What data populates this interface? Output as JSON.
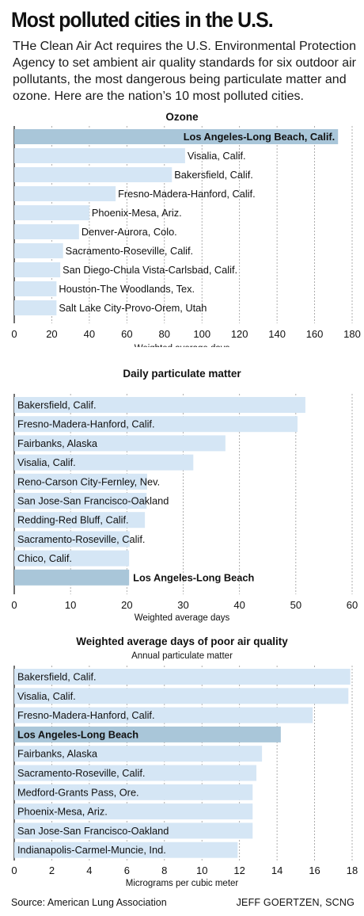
{
  "headline": "Most polluted cities in the U.S.",
  "intro": "THe Clean Air Act requires the U.S. Environmental Protection Agency to set ambient air quality standards for six outdoor air pollutants, the most dangerous being particulate matter and ozone. Here are the nation’s 10 most polluted cities.",
  "colors": {
    "bar": "#d5e6f5",
    "highlight": "#a9c6d9",
    "grid": "#999999",
    "axis": "#111111",
    "text": "#111111"
  },
  "chart_data": [
    {
      "type": "bar",
      "orientation": "horizontal",
      "title": "Ozone",
      "subtitle": "",
      "xlabel": "Weighted average days",
      "xlim": [
        0,
        180
      ],
      "ticks": [
        0,
        20,
        40,
        60,
        80,
        100,
        120,
        140,
        160,
        180
      ],
      "grid": true,
      "categories": [
        "Los Angeles-Long Beach, Calif.",
        "Visalia, Calif.",
        "Bakersfield, Calif.",
        "Fresno-Madera-Hanford, Calif.",
        "Phoenix-Mesa, Ariz.",
        "Denver-Aurora, Colo.",
        "Sacramento-Roseville, Calif.",
        "San Diego-Chula Vista-Carlsbad, Calif.",
        "Houston-The Woodlands, Tex.",
        "Salt Lake City-Provo-Orem, Utah"
      ],
      "values": [
        172.5,
        91,
        84,
        54,
        40,
        34.5,
        26,
        24.5,
        22.5,
        22.5
      ],
      "highlight": [
        0
      ]
    },
    {
      "type": "bar",
      "orientation": "horizontal",
      "title": "Daily particulate matter",
      "subtitle": "",
      "xlabel": "Weighted average days",
      "xlim": [
        0,
        60
      ],
      "ticks": [
        0,
        10,
        20,
        30,
        40,
        50,
        60
      ],
      "grid": true,
      "categories": [
        "Bakersfield, Calif.",
        "Fresno-Madera-Hanford, Calif.",
        "Fairbanks, Alaska",
        "Visalia, Calif.",
        "Reno-Carson City-Fernley, Nev.",
        "San Jose-San Francisco-Oakland",
        "Redding-Red Bluff, Calif.",
        "Sacramento-Roseville, Calif.",
        "Chico, Calif.",
        "Los Angeles-Long Beach"
      ],
      "values": [
        51.7,
        50.3,
        37.5,
        31.8,
        23.6,
        23.5,
        23.2,
        20.5,
        20.4,
        20.4
      ],
      "highlight": [
        9
      ]
    },
    {
      "type": "bar",
      "orientation": "horizontal",
      "title": "Weighted average days of poor air quality",
      "subtitle": "Annual particulate matter",
      "xlabel": "Micrograms per cubic meter",
      "xlim": [
        0,
        18
      ],
      "ticks": [
        0,
        2,
        4,
        6,
        8,
        10,
        12,
        14,
        16,
        18
      ],
      "grid": true,
      "categories": [
        "Bakersfield, Calif.",
        "Visalia, Calif.",
        "Fresno-Madera-Hanford, Calif.",
        "Los Angeles-Long Beach",
        "Fairbanks, Alaska",
        "Sacramento-Roseville, Calif.",
        "Medford-Grants Pass, Ore.",
        "Phoenix-Mesa, Ariz.",
        "San Jose-San Francisco-Oakland",
        "Indianapolis-Carmel-Muncie, Ind."
      ],
      "values": [
        17.9,
        17.8,
        15.9,
        14.2,
        13.2,
        12.9,
        12.7,
        12.7,
        12.7,
        11.9
      ],
      "highlight": [
        3
      ]
    }
  ],
  "source": "Source: American Lung Association",
  "credit": "JEFF GOERTZEN, SCNG"
}
